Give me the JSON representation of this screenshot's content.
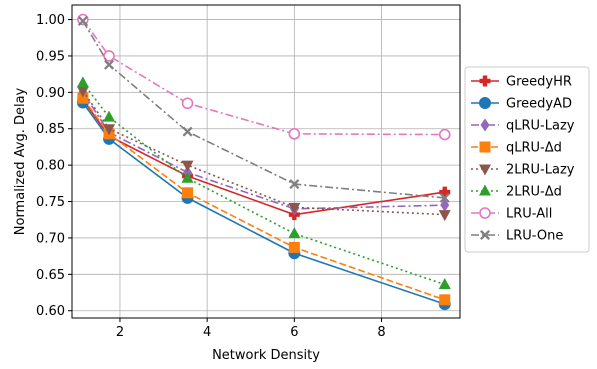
{
  "chart_data": {
    "type": "line",
    "xlabel": "Network Density",
    "ylabel": "Normalized Avg. Delay",
    "xlim": [
      0.9,
      9.8
    ],
    "ylim": [
      0.59,
      1.02
    ],
    "xticks": [
      2,
      4,
      6,
      8
    ],
    "xtick_labels": [
      "2",
      "4",
      "6",
      "8"
    ],
    "yticks": [
      0.6,
      0.65,
      0.7,
      0.75,
      0.8,
      0.85,
      0.9,
      0.95,
      1.0
    ],
    "ytick_labels": [
      "0.60",
      "0.65",
      "0.70",
      "0.75",
      "0.80",
      "0.85",
      "0.90",
      "0.95",
      "1.00"
    ],
    "grid": true,
    "legend_position": "outside-right",
    "x": [
      1.15,
      1.75,
      3.55,
      6.0,
      9.45
    ],
    "series": [
      {
        "name": "GreedyHR",
        "values": [
          0.89,
          0.84,
          0.785,
          0.732,
          0.763
        ],
        "color": "#d62728",
        "linestyle": "solid",
        "marker": "plus"
      },
      {
        "name": "GreedyAD",
        "values": [
          0.886,
          0.836,
          0.755,
          0.679,
          0.609
        ],
        "color": "#1f77b4",
        "linestyle": "solid",
        "marker": "circle"
      },
      {
        "name": "qLRU-Lazy",
        "values": [
          0.9,
          0.845,
          0.79,
          0.74,
          0.745
        ],
        "color": "#9467bd",
        "linestyle": "dashdot",
        "marker": "diamond"
      },
      {
        "name": "qLRU-Δd",
        "values": [
          0.892,
          0.843,
          0.762,
          0.687,
          0.615
        ],
        "color": "#ff7f0e",
        "linestyle": "dashed",
        "marker": "square"
      },
      {
        "name": "2LRU-Lazy",
        "values": [
          0.902,
          0.85,
          0.8,
          0.742,
          0.732
        ],
        "color": "#8c564b",
        "linestyle": "dotted",
        "marker": "triangle-down"
      },
      {
        "name": "2LRU-Δd",
        "values": [
          0.913,
          0.866,
          0.782,
          0.706,
          0.636
        ],
        "color": "#2ca02c",
        "linestyle": "dotted",
        "marker": "triangle-up"
      },
      {
        "name": "LRU-All",
        "values": [
          1.0,
          0.95,
          0.885,
          0.843,
          0.842
        ],
        "color": "#e377c2",
        "linestyle": "dashdot",
        "marker": "circle-open"
      },
      {
        "name": "LRU-One",
        "values": [
          0.998,
          0.938,
          0.846,
          0.774,
          0.755
        ],
        "color": "#7f7f7f",
        "linestyle": "dashdot",
        "marker": "x-filled"
      }
    ]
  }
}
